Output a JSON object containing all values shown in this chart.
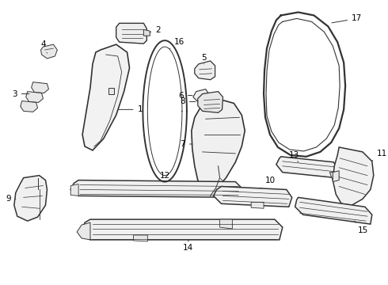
{
  "bg_color": "#ffffff",
  "line_color": "#333333",
  "label_color": "#000000",
  "label_fs": 7.5
}
